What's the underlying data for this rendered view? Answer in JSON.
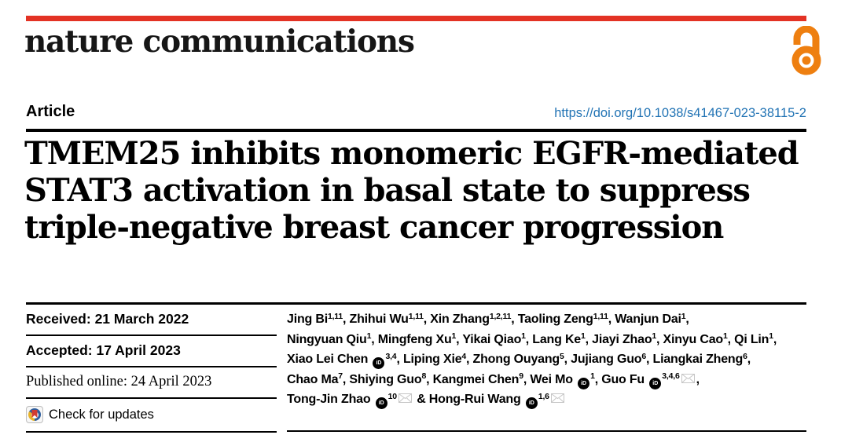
{
  "masthead": {
    "journal": "nature communications",
    "brand_bar_color": "#e33224",
    "open_access_icon": "open-access-padlock-icon",
    "open_access_color": "#ee7f10"
  },
  "article_bar": {
    "type_label": "Article",
    "doi_link": "https://doi.org/10.1038/s41467-023-38115-2",
    "doi_color": "#2173b4"
  },
  "title": {
    "full": "TMEM25 inhibits monomeric EGFR-mediated STAT3 activation in basal state to suppress triple-negative breast cancer progression",
    "lines": [
      "TMEM25 inhibits monomeric EGFR-mediated",
      "STAT3 activation in basal state to suppress",
      "triple-negative breast cancer progression"
    ]
  },
  "dates": [
    {
      "label": "Received:",
      "value": "21 March 2022"
    },
    {
      "label": "Accepted:",
      "value": "17 April 2023"
    },
    {
      "label": "Published online:",
      "value": "24 April 2023"
    }
  ],
  "check_for_updates": {
    "label": "Check for updates",
    "icon": "crossmark-icon",
    "icon_colors": {
      "blue": "#2f5f9e",
      "yellow": "#e8b32a",
      "red": "#d13c32"
    }
  },
  "authors": {
    "icons": {
      "orcid": "orcid-id-icon",
      "email": "envelope-icon"
    },
    "lines": [
      [
        {
          "t": "Jing Bi"
        },
        {
          "s": "1,11"
        },
        {
          "t": ", Zhihui Wu"
        },
        {
          "s": "1,11"
        },
        {
          "t": ", Xin Zhang"
        },
        {
          "s": "1,2,11"
        },
        {
          "t": ", Taoling Zeng"
        },
        {
          "s": "1,11"
        },
        {
          "t": ", Wanjun Dai"
        },
        {
          "s": "1"
        },
        {
          "t": ","
        }
      ],
      [
        {
          "t": "Ningyuan Qiu"
        },
        {
          "s": "1"
        },
        {
          "t": ", Mingfeng Xu"
        },
        {
          "s": "1"
        },
        {
          "t": ", Yikai Qiao"
        },
        {
          "s": "1"
        },
        {
          "t": ", Lang Ke"
        },
        {
          "s": "1"
        },
        {
          "t": ", Jiayi Zhao"
        },
        {
          "s": "1"
        },
        {
          "t": ", Xinyu Cao"
        },
        {
          "s": "1"
        },
        {
          "t": ", Qi Lin"
        },
        {
          "s": "1"
        },
        {
          "t": ","
        }
      ],
      [
        {
          "t": "Xiao Lei Chen "
        },
        {
          "i": "orcid"
        },
        {
          "s": "3,4"
        },
        {
          "t": ", Liping Xie"
        },
        {
          "s": "4"
        },
        {
          "t": ", Zhong Ouyang"
        },
        {
          "s": "5"
        },
        {
          "t": ", Jujiang Guo"
        },
        {
          "s": "6"
        },
        {
          "t": ", Liangkai Zheng"
        },
        {
          "s": "6"
        },
        {
          "t": ","
        }
      ],
      [
        {
          "t": "Chao Ma"
        },
        {
          "s": "7"
        },
        {
          "t": ", Shiying Guo"
        },
        {
          "s": "8"
        },
        {
          "t": ", Kangmei Chen"
        },
        {
          "s": "9"
        },
        {
          "t": ", Wei Mo "
        },
        {
          "i": "orcid"
        },
        {
          "s": "1"
        },
        {
          "t": ", Guo Fu "
        },
        {
          "i": "orcid"
        },
        {
          "s": "3,4,6"
        },
        {
          "i": "email"
        },
        {
          "t": ","
        }
      ],
      [
        {
          "t": "Tong-Jin Zhao "
        },
        {
          "i": "orcid"
        },
        {
          "s": "10"
        },
        {
          "i": "email"
        },
        {
          "t": " & Hong-Rui Wang "
        },
        {
          "i": "orcid"
        },
        {
          "s": "1,6"
        },
        {
          "i": "email"
        }
      ]
    ]
  }
}
